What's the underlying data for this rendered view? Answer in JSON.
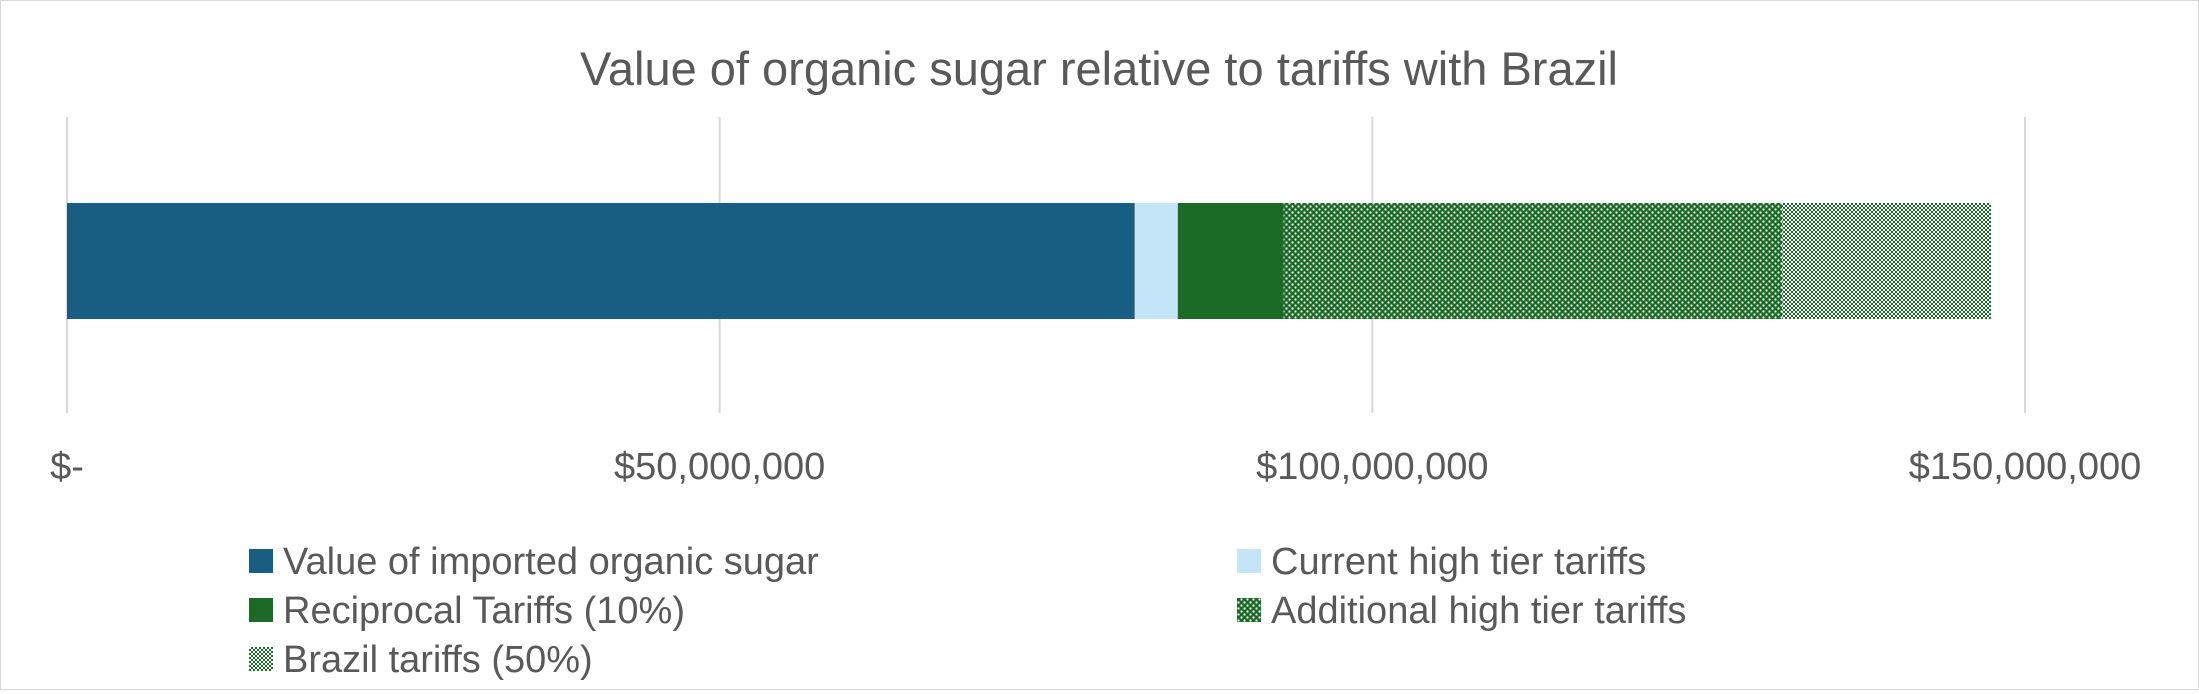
{
  "chart_data": {
    "type": "bar",
    "orientation": "horizontal",
    "stacked": true,
    "title": "Value of organic sugar relative to tariffs with Brazil",
    "xlim": [
      0,
      150000000
    ],
    "x_ticks": [
      {
        "value": 0,
        "label": "$-"
      },
      {
        "value": 50000000,
        "label": "$50,000,000"
      },
      {
        "value": 100000000,
        "label": "$100,000,000"
      },
      {
        "value": 150000000,
        "label": "$150,000,000"
      }
    ],
    "grid": true,
    "legend_position": "bottom",
    "series": [
      {
        "name": "Value of imported organic sugar",
        "value": 81800000,
        "color": "#175e82",
        "pattern": "solid"
      },
      {
        "name": "Current high tier tariffs",
        "value": 3300000,
        "color": "#c3e5f7",
        "pattern": "solid"
      },
      {
        "name": "Reciprocal Tariffs (10%)",
        "value": 8100000,
        "color": "#1b6b26",
        "pattern": "solid"
      },
      {
        "name": "Additional high tier tariffs",
        "value": 38200000,
        "color": "#1b6b26",
        "pattern": "dots-large"
      },
      {
        "name": "Brazil tariffs (50%)",
        "value": 16000000,
        "color": "#1b6b26",
        "pattern": "checker-small"
      }
    ]
  }
}
